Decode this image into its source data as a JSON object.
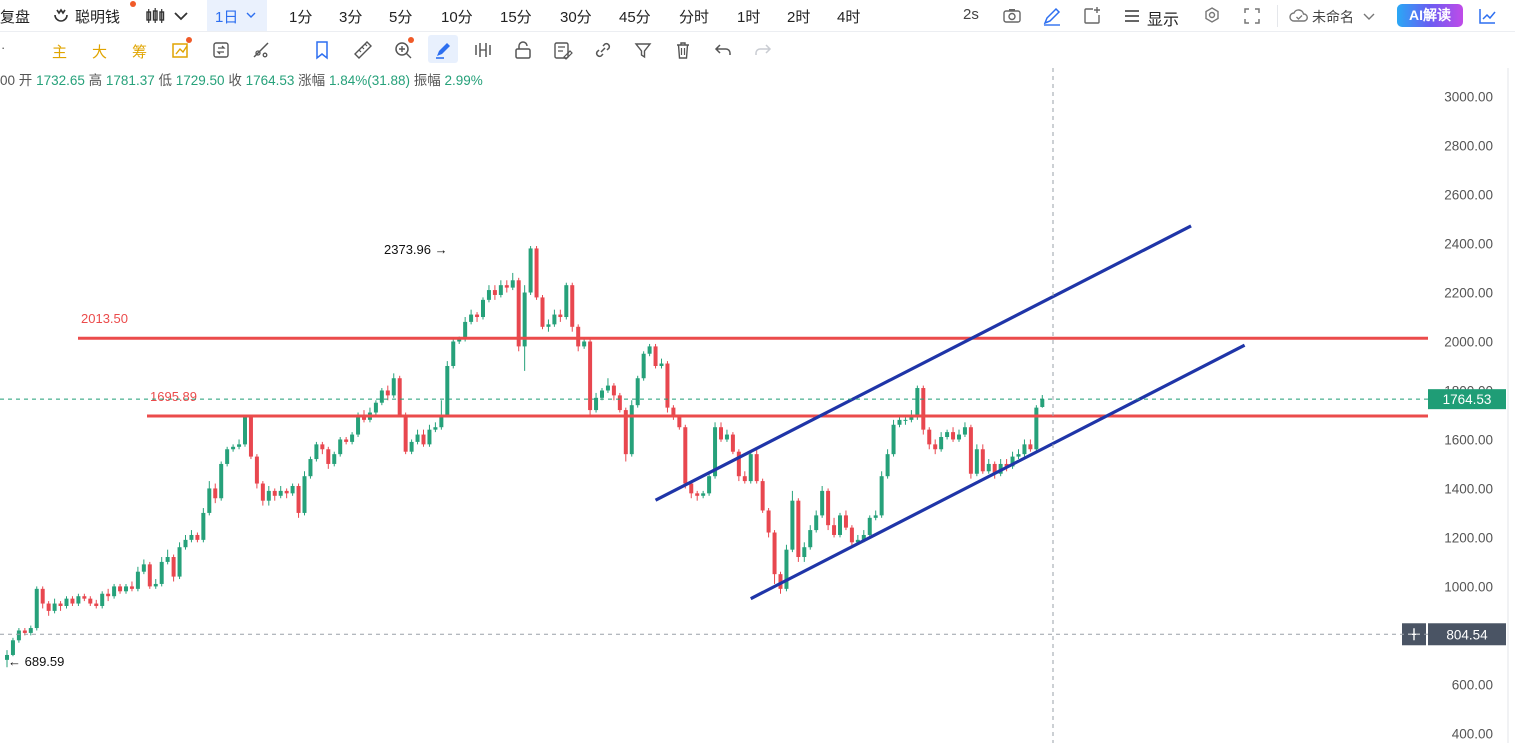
{
  "toolbar": {
    "fuqi_label": "复盘",
    "smart_money_label": "聪明钱",
    "period_active": "1日",
    "periods": [
      "1分",
      "3分",
      "5分",
      "10分",
      "15分",
      "30分",
      "45分",
      "分时",
      "1时",
      "2时",
      "4时"
    ],
    "refresh_label": "2s",
    "display_label": "显示",
    "layout_label": "未命名",
    "ai_label": "AI解读"
  },
  "tools": {
    "main_label": "主",
    "big_label": "大",
    "chip_label": "筹"
  },
  "ohlc": {
    "prefix": "00",
    "open_label": "开",
    "open": "1732.65",
    "high_label": "高",
    "high": "1781.37",
    "low_label": "低",
    "low": "1729.50",
    "close_label": "收",
    "close": "1764.53",
    "change_label": "涨幅",
    "change": "1.84%(31.88)",
    "amp_label": "振幅",
    "amp": "2.99%"
  },
  "colors": {
    "up": "#26a17a",
    "down": "#e8474f",
    "hline": "#eb4b4b",
    "trend": "#1f35a8",
    "price_tag": "#1f9d76",
    "cross_tag": "#4a5464"
  },
  "chart_data": {
    "type": "candlestick",
    "title": "",
    "xlabel": "",
    "ylabel": "",
    "ylim": [
      380,
      3100
    ],
    "yticks": [
      400,
      600,
      800,
      1000,
      1200,
      1400,
      1600,
      1800,
      2000,
      2200,
      2400,
      2600,
      2800,
      3000
    ],
    "current_price": 1764.53,
    "crosshair_price": 804.54,
    "max_label": "2373.96",
    "min_label": "689.59",
    "horizontal_lines": [
      {
        "label": "2013.50",
        "value": 2013.5
      },
      {
        "label": "1695.89",
        "value": 1695.89
      }
    ],
    "trend_lines": [
      {
        "from": [
          109,
          1352
        ],
        "to": [
          199,
          2472
        ]
      },
      {
        "from": [
          125,
          950
        ],
        "to": [
          208,
          1985
        ]
      }
    ],
    "candles": [
      [
        700,
        720,
        670,
        740
      ],
      [
        720,
        780,
        715,
        790
      ],
      [
        780,
        820,
        770,
        830
      ],
      [
        820,
        810,
        800,
        830
      ],
      [
        810,
        830,
        800,
        840
      ],
      [
        830,
        990,
        820,
        1000
      ],
      [
        990,
        930,
        910,
        1000
      ],
      [
        930,
        900,
        880,
        940
      ],
      [
        900,
        930,
        890,
        950
      ],
      [
        930,
        920,
        900,
        940
      ],
      [
        920,
        950,
        910,
        960
      ],
      [
        950,
        930,
        920,
        960
      ],
      [
        930,
        960,
        920,
        970
      ],
      [
        960,
        950,
        940,
        970
      ],
      [
        950,
        930,
        920,
        960
      ],
      [
        930,
        920,
        910,
        945
      ],
      [
        920,
        970,
        910,
        980
      ],
      [
        970,
        960,
        940,
        990
      ],
      [
        960,
        1000,
        950,
        1010
      ],
      [
        1000,
        980,
        970,
        1010
      ],
      [
        980,
        1000,
        970,
        1010
      ],
      [
        1000,
        990,
        980,
        1020
      ],
      [
        990,
        1060,
        980,
        1080
      ],
      [
        1060,
        1090,
        1050,
        1110
      ],
      [
        1090,
        1000,
        990,
        1100
      ],
      [
        1000,
        1010,
        990,
        1030
      ],
      [
        1010,
        1100,
        1000,
        1120
      ],
      [
        1100,
        1120,
        1090,
        1150
      ],
      [
        1120,
        1040,
        1020,
        1130
      ],
      [
        1040,
        1160,
        1030,
        1180
      ],
      [
        1160,
        1190,
        1150,
        1210
      ],
      [
        1190,
        1210,
        1180,
        1230
      ],
      [
        1210,
        1190,
        1180,
        1220
      ],
      [
        1190,
        1300,
        1180,
        1320
      ],
      [
        1300,
        1400,
        1290,
        1430
      ],
      [
        1400,
        1360,
        1340,
        1420
      ],
      [
        1360,
        1500,
        1350,
        1510
      ],
      [
        1500,
        1560,
        1490,
        1570
      ],
      [
        1560,
        1570,
        1550,
        1580
      ],
      [
        1570,
        1580,
        1560,
        1600
      ],
      [
        1580,
        1690,
        1570,
        1700
      ],
      [
        1690,
        1530,
        1520,
        1700
      ],
      [
        1530,
        1420,
        1400,
        1540
      ],
      [
        1420,
        1350,
        1330,
        1430
      ],
      [
        1350,
        1390,
        1330,
        1410
      ],
      [
        1390,
        1370,
        1350,
        1400
      ],
      [
        1370,
        1390,
        1360,
        1410
      ],
      [
        1390,
        1380,
        1360,
        1400
      ],
      [
        1380,
        1410,
        1370,
        1420
      ],
      [
        1410,
        1300,
        1280,
        1420
      ],
      [
        1300,
        1450,
        1290,
        1470
      ],
      [
        1450,
        1520,
        1440,
        1530
      ],
      [
        1520,
        1580,
        1510,
        1590
      ],
      [
        1580,
        1560,
        1540,
        1590
      ],
      [
        1560,
        1500,
        1480,
        1570
      ],
      [
        1500,
        1540,
        1490,
        1550
      ],
      [
        1540,
        1600,
        1530,
        1610
      ],
      [
        1600,
        1590,
        1580,
        1610
      ],
      [
        1590,
        1620,
        1580,
        1630
      ],
      [
        1620,
        1700,
        1610,
        1710
      ],
      [
        1700,
        1680,
        1670,
        1720
      ],
      [
        1680,
        1710,
        1670,
        1730
      ],
      [
        1710,
        1750,
        1700,
        1760
      ],
      [
        1750,
        1800,
        1740,
        1810
      ],
      [
        1800,
        1780,
        1760,
        1820
      ],
      [
        1780,
        1850,
        1770,
        1870
      ],
      [
        1850,
        1700,
        1690,
        1860
      ],
      [
        1700,
        1550,
        1540,
        1710
      ],
      [
        1550,
        1590,
        1540,
        1600
      ],
      [
        1590,
        1620,
        1580,
        1640
      ],
      [
        1620,
        1580,
        1570,
        1640
      ],
      [
        1580,
        1640,
        1570,
        1660
      ],
      [
        1640,
        1650,
        1630,
        1670
      ],
      [
        1650,
        1700,
        1640,
        1760
      ],
      [
        1700,
        1900,
        1690,
        1920
      ],
      [
        1900,
        2000,
        1890,
        2010
      ],
      [
        2000,
        2010,
        1990,
        2020
      ],
      [
        2010,
        2080,
        2000,
        2100
      ],
      [
        2080,
        2110,
        2070,
        2130
      ],
      [
        2110,
        2100,
        2080,
        2120
      ],
      [
        2100,
        2170,
        2090,
        2180
      ],
      [
        2170,
        2210,
        2160,
        2230
      ],
      [
        2210,
        2190,
        2170,
        2230
      ],
      [
        2190,
        2230,
        2180,
        2250
      ],
      [
        2230,
        2220,
        2200,
        2250
      ],
      [
        2220,
        2250,
        2210,
        2280
      ],
      [
        2250,
        1980,
        1960,
        2260
      ],
      [
        1980,
        2200,
        1880,
        2230
      ],
      [
        2200,
        2380,
        2190,
        2390
      ],
      [
        2380,
        2180,
        2170,
        2390
      ],
      [
        2180,
        2060,
        2050,
        2190
      ],
      [
        2060,
        2070,
        2040,
        2090
      ],
      [
        2070,
        2110,
        2060,
        2130
      ],
      [
        2110,
        2100,
        2080,
        2130
      ],
      [
        2100,
        2230,
        2090,
        2240
      ],
      [
        2230,
        2060,
        2040,
        2240
      ],
      [
        2060,
        1980,
        1960,
        2070
      ],
      [
        1980,
        2000,
        1970,
        2010
      ],
      [
        2000,
        1720,
        1700,
        2010
      ],
      [
        1720,
        1770,
        1710,
        1790
      ],
      [
        1770,
        1800,
        1760,
        1810
      ],
      [
        1800,
        1820,
        1790,
        1850
      ],
      [
        1820,
        1780,
        1760,
        1830
      ],
      [
        1780,
        1720,
        1710,
        1790
      ],
      [
        1720,
        1540,
        1510,
        1730
      ],
      [
        1540,
        1740,
        1530,
        1760
      ],
      [
        1740,
        1850,
        1730,
        1860
      ],
      [
        1850,
        1950,
        1840,
        1960
      ],
      [
        1950,
        1980,
        1940,
        1990
      ],
      [
        1980,
        1900,
        1890,
        1990
      ],
      [
        1900,
        1910,
        1890,
        1930
      ],
      [
        1910,
        1730,
        1710,
        1920
      ],
      [
        1730,
        1690,
        1680,
        1740
      ],
      [
        1690,
        1650,
        1640,
        1700
      ],
      [
        1650,
        1420,
        1400,
        1660
      ],
      [
        1420,
        1380,
        1360,
        1430
      ],
      [
        1380,
        1370,
        1350,
        1390
      ],
      [
        1370,
        1380,
        1360,
        1390
      ],
      [
        1380,
        1450,
        1370,
        1470
      ],
      [
        1450,
        1650,
        1440,
        1670
      ],
      [
        1650,
        1600,
        1590,
        1670
      ],
      [
        1600,
        1620,
        1590,
        1640
      ],
      [
        1620,
        1550,
        1540,
        1630
      ],
      [
        1550,
        1450,
        1430,
        1560
      ],
      [
        1450,
        1430,
        1420,
        1470
      ],
      [
        1430,
        1540,
        1420,
        1550
      ],
      [
        1540,
        1430,
        1420,
        1560
      ],
      [
        1430,
        1310,
        1300,
        1440
      ],
      [
        1310,
        1220,
        1200,
        1320
      ],
      [
        1220,
        1050,
        1010,
        1230
      ],
      [
        1050,
        990,
        970,
        1060
      ],
      [
        990,
        1150,
        980,
        1170
      ],
      [
        1150,
        1350,
        1140,
        1390
      ],
      [
        1350,
        1120,
        1100,
        1360
      ],
      [
        1120,
        1160,
        1100,
        1180
      ],
      [
        1160,
        1230,
        1150,
        1250
      ],
      [
        1230,
        1290,
        1220,
        1310
      ],
      [
        1290,
        1390,
        1280,
        1410
      ],
      [
        1390,
        1250,
        1230,
        1400
      ],
      [
        1250,
        1210,
        1200,
        1280
      ],
      [
        1210,
        1290,
        1200,
        1300
      ],
      [
        1290,
        1240,
        1230,
        1310
      ],
      [
        1240,
        1180,
        1160,
        1250
      ],
      [
        1180,
        1190,
        1170,
        1210
      ],
      [
        1190,
        1210,
        1180,
        1230
      ],
      [
        1210,
        1280,
        1200,
        1290
      ],
      [
        1280,
        1290,
        1270,
        1310
      ],
      [
        1290,
        1450,
        1280,
        1470
      ],
      [
        1450,
        1540,
        1440,
        1560
      ],
      [
        1540,
        1660,
        1530,
        1680
      ],
      [
        1660,
        1680,
        1650,
        1700
      ],
      [
        1680,
        1680,
        1660,
        1700
      ],
      [
        1680,
        1690,
        1670,
        1720
      ],
      [
        1690,
        1810,
        1680,
        1820
      ],
      [
        1810,
        1640,
        1620,
        1820
      ],
      [
        1640,
        1580,
        1560,
        1650
      ],
      [
        1580,
        1560,
        1540,
        1600
      ],
      [
        1560,
        1610,
        1550,
        1630
      ],
      [
        1610,
        1630,
        1600,
        1640
      ],
      [
        1630,
        1600,
        1590,
        1650
      ],
      [
        1600,
        1620,
        1590,
        1640
      ],
      [
        1620,
        1650,
        1610,
        1670
      ],
      [
        1650,
        1460,
        1440,
        1660
      ],
      [
        1460,
        1560,
        1450,
        1580
      ],
      [
        1560,
        1470,
        1460,
        1580
      ],
      [
        1470,
        1500,
        1460,
        1520
      ],
      [
        1500,
        1460,
        1440,
        1510
      ],
      [
        1460,
        1500,
        1450,
        1520
      ],
      [
        1500,
        1490,
        1470,
        1520
      ],
      [
        1490,
        1530,
        1480,
        1550
      ],
      [
        1530,
        1540,
        1520,
        1560
      ],
      [
        1540,
        1580,
        1530,
        1600
      ],
      [
        1580,
        1560,
        1550,
        1600
      ],
      [
        1560,
        1730,
        1550,
        1740
      ],
      [
        1732.65,
        1764.53,
        1729.5,
        1781.37
      ]
    ]
  }
}
